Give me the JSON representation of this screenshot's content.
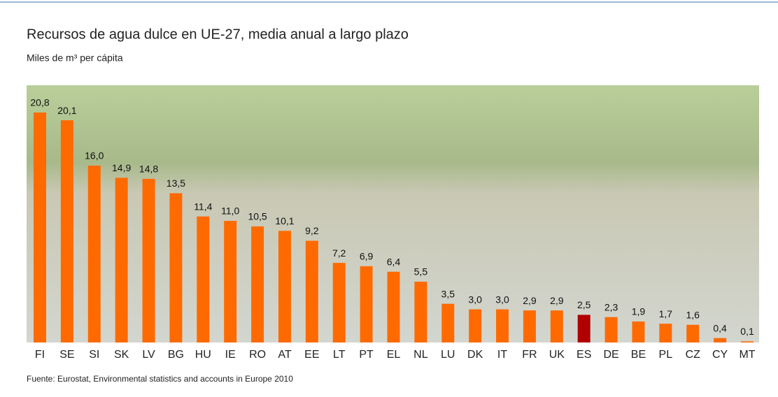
{
  "chart_data": {
    "type": "bar",
    "title": "Recursos de agua dulce en UE-27, media anual a largo plazo",
    "subtitle": "Miles de m³ per cápita",
    "source": "Fuente: Eurostat, Environmental statistics and accounts in Europe 2010",
    "categories": [
      "FI",
      "SE",
      "SI",
      "SK",
      "LV",
      "BG",
      "HU",
      "IE",
      "RO",
      "AT",
      "EE",
      "LT",
      "PT",
      "EL",
      "NL",
      "LU",
      "DK",
      "IT",
      "FR",
      "UK",
      "ES",
      "DE",
      "BE",
      "PL",
      "CZ",
      "CY",
      "MT"
    ],
    "values": [
      20.8,
      20.1,
      16.0,
      14.9,
      14.8,
      13.5,
      11.4,
      11.0,
      10.5,
      10.1,
      9.2,
      7.2,
      6.9,
      6.4,
      5.5,
      3.5,
      3.0,
      3.0,
      2.9,
      2.9,
      2.5,
      2.3,
      1.9,
      1.7,
      1.6,
      0.4,
      0.1
    ],
    "value_labels": [
      "20,8",
      "20,1",
      "16,0",
      "14,9",
      "14,8",
      "13,5",
      "11,4",
      "11,0",
      "10,5",
      "10,1",
      "9,2",
      "7,2",
      "6,9",
      "6,4",
      "5,5",
      "3,5",
      "3,0",
      "3,0",
      "2,9",
      "2,9",
      "2,5",
      "2,3",
      "1,9",
      "1,7",
      "1,6",
      "0,4",
      "0,1"
    ],
    "colors": [
      "#ff6a00",
      "#ff6a00",
      "#ff6a00",
      "#ff6a00",
      "#ff6a00",
      "#ff6a00",
      "#ff6a00",
      "#ff6a00",
      "#ff6a00",
      "#ff6a00",
      "#ff6a00",
      "#ff6a00",
      "#ff6a00",
      "#ff6a00",
      "#ff6a00",
      "#ff6a00",
      "#ff6a00",
      "#ff6a00",
      "#ff6a00",
      "#ff6a00",
      "#b00000",
      "#ff6a00",
      "#ff6a00",
      "#ff6a00",
      "#ff6a00",
      "#ff6a00",
      "#ff6a00"
    ]
  }
}
